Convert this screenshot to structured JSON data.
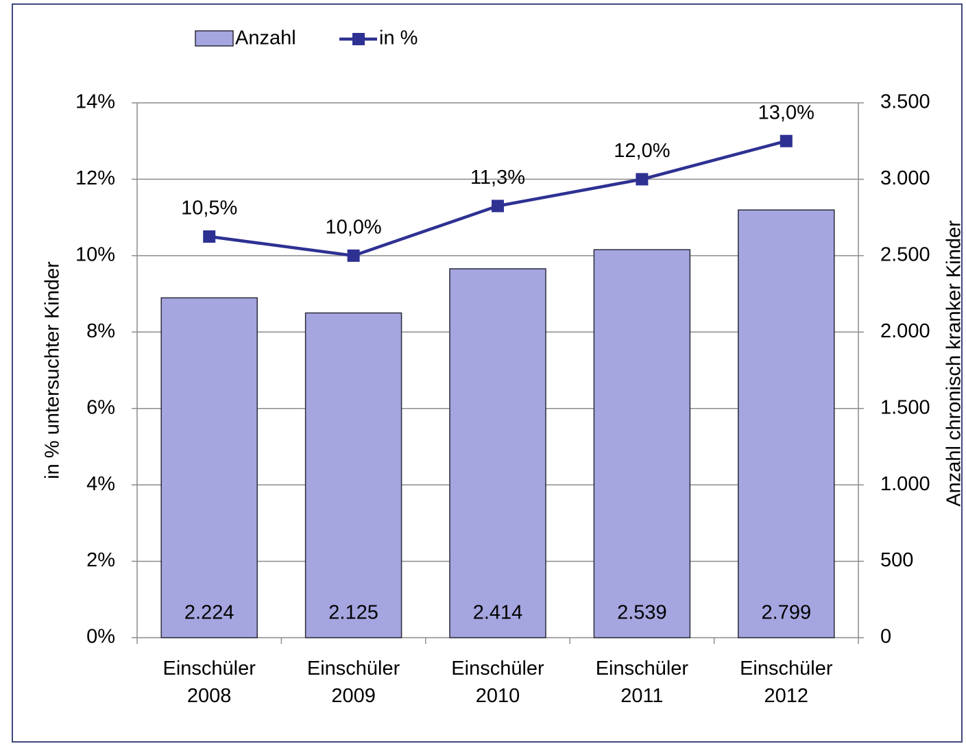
{
  "chart_data": {
    "type": "bar",
    "categories": [
      "Einschüler 2008",
      "Einschüler 2009",
      "Einschüler 2010",
      "Einschüler 2011",
      "Einschüler 2012"
    ],
    "series": [
      {
        "name": "Anzahl",
        "type": "bar",
        "axis": "y2",
        "color": "#a5a5e0",
        "values": [
          2224,
          2125,
          2414,
          2539,
          2799
        ],
        "value_labels": [
          "2.224",
          "2.125",
          "2.414",
          "2.539",
          "2.799"
        ]
      },
      {
        "name": "in %",
        "type": "line",
        "color": "#2e3192",
        "values": [
          10.5,
          10.0,
          11.3,
          12.0,
          13.0
        ],
        "value_labels": [
          "10,5%",
          "10,0%",
          "11,3%",
          "12,0%",
          "13,0%"
        ]
      }
    ],
    "y_label": "in % untersuchter Kinder",
    "y2_label": "Anzahl chronisch kranker Kinder",
    "ylim": [
      0,
      14
    ],
    "yticks": [
      {
        "value": 0,
        "label": "0%"
      },
      {
        "value": 2,
        "label": "2%"
      },
      {
        "value": 4,
        "label": "4%"
      },
      {
        "value": 6,
        "label": "6%"
      },
      {
        "value": 8,
        "label": "8%"
      },
      {
        "value": 10,
        "label": "10%"
      },
      {
        "value": 12,
        "label": "12%"
      },
      {
        "value": 14,
        "label": "14%"
      }
    ],
    "y2lim": [
      0,
      3500
    ],
    "y2ticks": [
      0,
      500,
      {
        "value": 1000,
        "label": "1.000"
      },
      {
        "value": 1500,
        "label": "1.500"
      },
      {
        "value": 2000,
        "label": "2.000"
      },
      {
        "value": 2500,
        "label": "2.500"
      },
      {
        "value": 3000,
        "label": "3.000"
      },
      {
        "value": 3500,
        "label": "3.500"
      }
    ],
    "grid": true,
    "legend": "top"
  }
}
